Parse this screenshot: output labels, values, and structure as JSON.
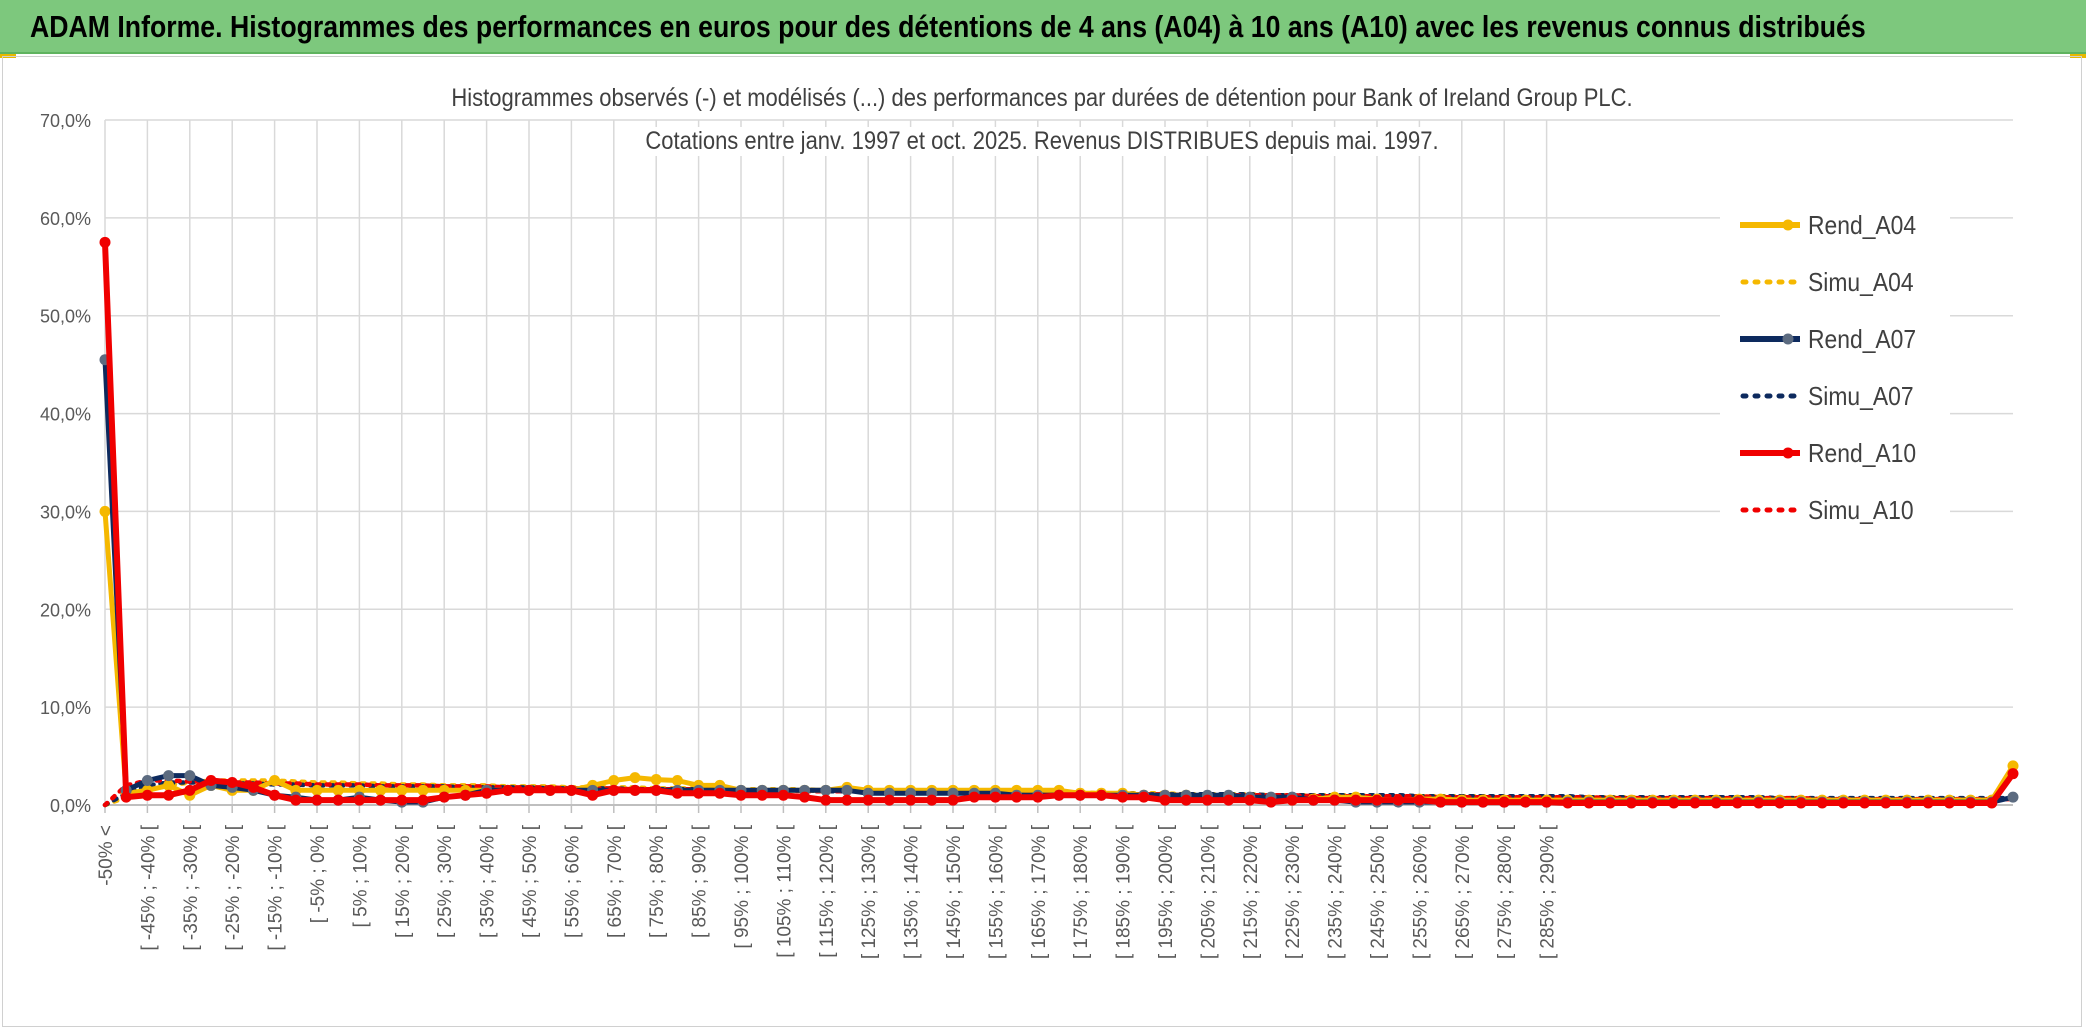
{
  "banner": {
    "title": "ADAM Informe. Histogrammes des performances en euros pour des détentions de 4 ans (A04) à 10 ans (A10) avec les revenus connus distribués"
  },
  "colors": {
    "banner_bg": "#7dc87d",
    "A04": "#f5b800",
    "A07": "#0d2a5e",
    "A07_marker": "#5c6b80",
    "A10": "#f00000",
    "grid": "#d9d9d9",
    "axis_text": "#595959"
  },
  "chart_data": {
    "type": "line",
    "title": "Histogrammes observés (-) et modélisés (...) des performances par durées de détention pour Bank of Ireland Group PLC.",
    "subtitle": "Cotations entre janv. 1997 et oct. 2025. Revenus DISTRIBUES depuis mai. 1997.",
    "xlabel": "",
    "ylabel": "",
    "ylim": [
      0,
      70
    ],
    "y_ticks": [
      "0,0%",
      "10,0%",
      "20,0%",
      "30,0%",
      "40,0%",
      "50,0%",
      "60,0%",
      "70,0%"
    ],
    "x_tick_labels": [
      "-50% <",
      "[ -45% ; -40% [",
      "[ -35% ; -30% [",
      "[ -25% ; -20% [",
      "[ -15% ; -10% [",
      "[ -5% ; 0% [",
      "[ 5% ; 10% [",
      "[ 15% ; 20% [",
      "[ 25% ; 30% [",
      "[ 35% ; 40% [",
      "[ 45% ; 50% [",
      "[ 55% ; 60% [",
      "[ 65% ; 70% [",
      "[ 75% ; 80% [",
      "[ 85% ; 90% [",
      "[ 95% ; 100% [",
      "[ 105% ; 110% [",
      "[ 115% ; 120% [",
      "[ 125% ; 130% [",
      "[ 135% ; 140% [",
      "[ 145% ; 150% [",
      "[ 155% ; 160% [",
      "[ 165% ; 170% [",
      "[ 175% ; 180% [",
      "[ 185% ; 190% [",
      "[ 195% ; 200% [",
      "[ 205% ; 210% [",
      "[ 215% ; 220% [",
      "[ 225% ; 230% [",
      "[ 235% ; 240% [",
      "[ 245% ; 250% [",
      "[ 255% ; 260% [",
      "[ 265% ; 270% [",
      "[ 275% ; 280% [",
      "[ 285% ; 290% ["
    ],
    "grid": true,
    "legend_position": "right",
    "series": [
      {
        "name": "Rend_A04",
        "style": "solid",
        "values": [
          30.0,
          1.2,
          1.5,
          2.0,
          1.0,
          2.0,
          1.5,
          1.5,
          2.5,
          1.5,
          1.5,
          1.5,
          1.5,
          1.5,
          1.5,
          1.5,
          1.5,
          1.5,
          1.5,
          1.5,
          1.5,
          1.5,
          1.5,
          2.0,
          2.5,
          2.8,
          2.6,
          2.5,
          2.0,
          2.0,
          1.5,
          1.5,
          1.5,
          1.5,
          1.5,
          1.8,
          1.5,
          1.5,
          1.5,
          1.5,
          1.5,
          1.5,
          1.5,
          1.5,
          1.5,
          1.5,
          1.2,
          1.2,
          1.2,
          1.0,
          1.0,
          1.0,
          0.8,
          0.8,
          0.6,
          0.5,
          0.5,
          0.6,
          0.8,
          0.8,
          0.6,
          0.5,
          0.6,
          0.6,
          0.5,
          0.5,
          0.5,
          0.5,
          0.5,
          0.5,
          0.5,
          0.5,
          0.5,
          0.5,
          0.5,
          0.5,
          0.5,
          0.5,
          0.5,
          0.5,
          0.5,
          0.5,
          0.5,
          0.5,
          0.5,
          0.5,
          0.5,
          0.5,
          0.5,
          0.5,
          4.0
        ]
      },
      {
        "name": "Simu_A04",
        "style": "dotted",
        "values": [
          0.0,
          0.8,
          1.5,
          2.0,
          2.3,
          2.5,
          2.5,
          2.5,
          2.5,
          2.4,
          2.3,
          2.3,
          2.2,
          2.2,
          2.1,
          2.1,
          2.0,
          2.0,
          2.0,
          1.9,
          1.9,
          1.9,
          1.8,
          1.8,
          1.8,
          1.8,
          1.7,
          1.7,
          1.7,
          1.7,
          1.6,
          1.6,
          1.6,
          1.6,
          1.5,
          1.5,
          1.5,
          1.5,
          1.5,
          1.4,
          1.4,
          1.4,
          1.4,
          1.3,
          1.3,
          1.3,
          1.3,
          1.2,
          1.2,
          1.2,
          1.2,
          1.1,
          1.1,
          1.1,
          1.1,
          1.0,
          1.0,
          1.0,
          1.0,
          1.0,
          0.9,
          0.9,
          0.9,
          0.9,
          0.9,
          0.9,
          0.8,
          0.8,
          0.8,
          0.8,
          0.8,
          0.8,
          0.8,
          0.7,
          0.7,
          0.7,
          0.7,
          0.7,
          0.7,
          0.7,
          0.7,
          0.6,
          0.6,
          0.6,
          0.6,
          0.6,
          0.6,
          0.6,
          0.6,
          0.6,
          0.6
        ]
      },
      {
        "name": "Rend_A07",
        "style": "solid",
        "values": [
          45.5,
          1.5,
          2.5,
          3.0,
          3.0,
          2.0,
          1.8,
          1.5,
          1.0,
          0.8,
          0.5,
          0.5,
          0.8,
          0.5,
          0.3,
          0.3,
          0.8,
          1.0,
          1.5,
          1.5,
          1.5,
          1.5,
          1.5,
          1.5,
          1.5,
          1.5,
          1.5,
          1.5,
          1.5,
          1.5,
          1.5,
          1.5,
          1.5,
          1.5,
          1.5,
          1.5,
          1.2,
          1.2,
          1.2,
          1.2,
          1.2,
          1.2,
          1.2,
          1.0,
          1.0,
          1.0,
          1.0,
          1.0,
          1.0,
          1.0,
          1.0,
          1.0,
          1.0,
          1.0,
          0.8,
          0.8,
          0.8,
          0.5,
          0.5,
          0.3,
          0.3,
          0.3,
          0.3,
          0.3,
          0.3,
          0.3,
          0.3,
          0.3,
          0.3,
          0.3,
          0.3,
          0.3,
          0.3,
          0.3,
          0.3,
          0.3,
          0.3,
          0.3,
          0.3,
          0.3,
          0.3,
          0.3,
          0.3,
          0.3,
          0.3,
          0.3,
          0.3,
          0.3,
          0.3,
          0.3,
          0.8
        ]
      },
      {
        "name": "Simu_A07",
        "style": "dotted",
        "values": [
          0.0,
          1.2,
          2.0,
          2.3,
          2.3,
          2.3,
          2.2,
          2.2,
          2.1,
          2.1,
          2.0,
          2.0,
          2.0,
          1.9,
          1.9,
          1.9,
          1.9,
          1.8,
          1.8,
          1.8,
          1.8,
          1.7,
          1.7,
          1.7,
          1.7,
          1.6,
          1.6,
          1.6,
          1.6,
          1.5,
          1.5,
          1.5,
          1.5,
          1.5,
          1.4,
          1.4,
          1.4,
          1.4,
          1.4,
          1.3,
          1.3,
          1.3,
          1.3,
          1.3,
          1.2,
          1.2,
          1.2,
          1.2,
          1.2,
          1.1,
          1.1,
          1.1,
          1.1,
          1.1,
          1.1,
          1.0,
          1.0,
          1.0,
          1.0,
          1.0,
          1.0,
          1.0,
          0.9,
          0.9,
          0.9,
          0.9,
          0.9,
          0.9,
          0.9,
          0.9,
          0.8,
          0.8,
          0.8,
          0.8,
          0.8,
          0.8,
          0.8,
          0.8,
          0.8,
          0.7,
          0.7,
          0.7,
          0.7,
          0.7,
          0.7,
          0.7,
          0.7,
          0.7,
          0.7,
          0.7,
          0.7
        ]
      },
      {
        "name": "Rend_A10",
        "style": "solid",
        "values": [
          57.5,
          0.8,
          1.0,
          1.0,
          1.5,
          2.5,
          2.3,
          1.8,
          1.0,
          0.5,
          0.5,
          0.5,
          0.5,
          0.5,
          0.5,
          0.5,
          0.8,
          1.0,
          1.2,
          1.5,
          1.5,
          1.5,
          1.5,
          1.0,
          1.5,
          1.5,
          1.5,
          1.2,
          1.2,
          1.2,
          1.0,
          1.0,
          1.0,
          0.8,
          0.5,
          0.5,
          0.5,
          0.5,
          0.5,
          0.5,
          0.5,
          0.8,
          0.8,
          0.8,
          0.8,
          1.0,
          1.0,
          1.0,
          0.8,
          0.8,
          0.5,
          0.5,
          0.5,
          0.5,
          0.5,
          0.3,
          0.5,
          0.5,
          0.5,
          0.5,
          0.5,
          0.5,
          0.5,
          0.3,
          0.3,
          0.3,
          0.3,
          0.3,
          0.3,
          0.2,
          0.2,
          0.2,
          0.2,
          0.2,
          0.2,
          0.2,
          0.2,
          0.2,
          0.2,
          0.2,
          0.2,
          0.2,
          0.2,
          0.2,
          0.2,
          0.2,
          0.2,
          0.2,
          0.2,
          0.2,
          3.2
        ]
      },
      {
        "name": "Simu_A10",
        "style": "dotted",
        "values": [
          0.0,
          2.0,
          2.5,
          2.5,
          2.4,
          2.4,
          2.3,
          2.3,
          2.2,
          2.2,
          2.1,
          2.1,
          2.1,
          2.0,
          2.0,
          2.0,
          1.9,
          1.9,
          1.9,
          1.8,
          1.8,
          1.8,
          1.7,
          1.7,
          1.7,
          1.6,
          1.6,
          1.6,
          1.6,
          1.5,
          1.5,
          1.5,
          1.5,
          1.4,
          1.4,
          1.4,
          1.4,
          1.3,
          1.3,
          1.3,
          1.3,
          1.3,
          1.2,
          1.2,
          1.2,
          1.2,
          1.1,
          1.1,
          1.1,
          1.1,
          1.1,
          1.0,
          1.0,
          1.0,
          1.0,
          1.0,
          1.0,
          0.9,
          0.9,
          0.9,
          0.9,
          0.9,
          0.9,
          0.8,
          0.8,
          0.8,
          0.8,
          0.8,
          0.8,
          0.8,
          0.8,
          0.7,
          0.7,
          0.7,
          0.7,
          0.7,
          0.7,
          0.7,
          0.7,
          0.7,
          0.7,
          0.6,
          0.6,
          0.6,
          0.6,
          0.6,
          0.6,
          0.6,
          0.6,
          0.6,
          0.6
        ]
      }
    ]
  }
}
